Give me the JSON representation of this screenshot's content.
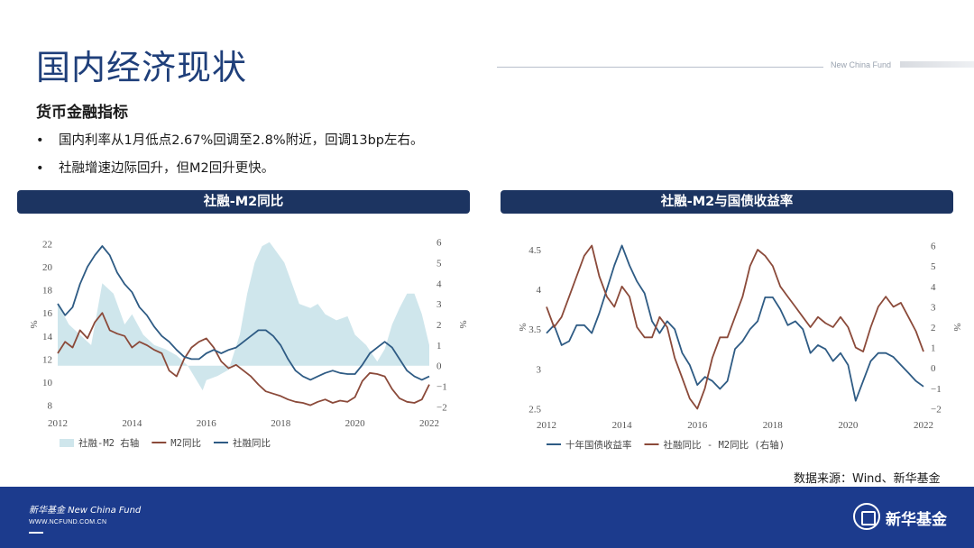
{
  "header": {
    "title": "国内经济现状",
    "brand": "New China Fund"
  },
  "content": {
    "subtitle": "货币金融指标",
    "bullets": [
      "国内利率从1月低点2.67%回调至2.8%附近，回调13bp左右。",
      "社融增速边际回升，但M2回升更快。"
    ]
  },
  "colors": {
    "navy": "#1c3461",
    "line_blue": "#2e5b84",
    "line_brown": "#8b4a3a",
    "area_fill": "#cfe6ec",
    "footer": "#1c3b8d"
  },
  "chart_data": [
    {
      "type": "line",
      "title": "社融-M2同比",
      "x_ticks": [
        "2012",
        "2014",
        "2016",
        "2018",
        "2020",
        "2022"
      ],
      "xlim": [
        2012,
        2022
      ],
      "ylabel": "%",
      "y2label": "%",
      "y_ticks": [
        "8",
        "10",
        "12",
        "14",
        "16",
        "18",
        "20",
        "22"
      ],
      "ylim": [
        7.5,
        22.5
      ],
      "y2_ticks": [
        "−2",
        "−1",
        "0",
        "1",
        "2",
        "3",
        "4",
        "5",
        "6"
      ],
      "y2lim": [
        -2.2,
        6.2
      ],
      "legend": [
        "社融-M2 右轴",
        "M2同比",
        "社融同比"
      ],
      "series": [
        {
          "name": "社融-M2 右轴",
          "axis": "right",
          "kind": "area",
          "x": [
            2012.0,
            2012.3,
            2012.6,
            2012.9,
            2013.2,
            2013.5,
            2013.8,
            2014.0,
            2014.3,
            2014.6,
            2014.9,
            2015.2,
            2015.5,
            2015.7,
            2015.9,
            2016.0,
            2016.3,
            2016.6,
            2016.9,
            2017.1,
            2017.3,
            2017.5,
            2017.7,
            2017.9,
            2018.1,
            2018.3,
            2018.5,
            2018.8,
            2019.0,
            2019.2,
            2019.5,
            2019.8,
            2020.0,
            2020.3,
            2020.6,
            2020.8,
            2021.0,
            2021.2,
            2021.4,
            2021.6,
            2021.8,
            2022.0
          ],
          "values": [
            3.0,
            2.0,
            1.5,
            1.0,
            4.0,
            3.5,
            2.0,
            2.5,
            1.5,
            1.0,
            0.8,
            0.5,
            0.0,
            -0.6,
            -1.2,
            -0.7,
            -0.5,
            -0.2,
            1.5,
            3.5,
            5.0,
            5.8,
            6.0,
            5.5,
            5.0,
            4.0,
            3.0,
            2.8,
            3.0,
            2.5,
            2.2,
            2.4,
            1.5,
            1.0,
            0.2,
            0.8,
            2.0,
            2.8,
            3.5,
            3.5,
            2.5,
            1.0
          ]
        },
        {
          "name": "M2同比",
          "axis": "left",
          "kind": "line",
          "x": [
            2012.0,
            2012.2,
            2012.4,
            2012.6,
            2012.8,
            2013.0,
            2013.2,
            2013.4,
            2013.6,
            2013.8,
            2014.0,
            2014.2,
            2014.4,
            2014.6,
            2014.8,
            2015.0,
            2015.2,
            2015.4,
            2015.6,
            2015.8,
            2016.0,
            2016.2,
            2016.4,
            2016.6,
            2016.8,
            2017.0,
            2017.2,
            2017.4,
            2017.6,
            2017.8,
            2018.0,
            2018.2,
            2018.4,
            2018.6,
            2018.8,
            2019.0,
            2019.2,
            2019.4,
            2019.6,
            2019.8,
            2020.0,
            2020.2,
            2020.4,
            2020.6,
            2020.8,
            2021.0,
            2021.2,
            2021.4,
            2021.6,
            2021.8,
            2022.0
          ],
          "values": [
            12.5,
            13.5,
            13.0,
            14.5,
            13.8,
            15.2,
            16.0,
            14.5,
            14.2,
            14.0,
            13.0,
            13.5,
            13.2,
            12.8,
            12.5,
            11.0,
            10.5,
            12.0,
            13.0,
            13.5,
            13.8,
            13.0,
            11.8,
            11.2,
            11.5,
            11.0,
            10.5,
            9.8,
            9.2,
            9.0,
            8.8,
            8.5,
            8.3,
            8.2,
            8.0,
            8.3,
            8.5,
            8.2,
            8.4,
            8.3,
            8.7,
            10.1,
            10.8,
            10.7,
            10.5,
            9.4,
            8.6,
            8.3,
            8.2,
            8.5,
            9.8
          ]
        },
        {
          "name": "社融同比",
          "axis": "left",
          "kind": "line",
          "x": [
            2012.0,
            2012.2,
            2012.4,
            2012.6,
            2012.8,
            2013.0,
            2013.2,
            2013.4,
            2013.6,
            2013.8,
            2014.0,
            2014.2,
            2014.4,
            2014.6,
            2014.8,
            2015.0,
            2015.2,
            2015.4,
            2015.6,
            2015.8,
            2016.0,
            2016.2,
            2016.4,
            2016.6,
            2016.8,
            2017.0,
            2017.2,
            2017.4,
            2017.6,
            2017.8,
            2018.0,
            2018.2,
            2018.4,
            2018.6,
            2018.8,
            2019.0,
            2019.2,
            2019.4,
            2019.6,
            2019.8,
            2020.0,
            2020.2,
            2020.4,
            2020.6,
            2020.8,
            2021.0,
            2021.2,
            2021.4,
            2021.6,
            2021.8,
            2022.0
          ],
          "values": [
            16.8,
            15.8,
            16.5,
            18.5,
            20.0,
            21.0,
            21.8,
            21.0,
            19.5,
            18.5,
            17.8,
            16.5,
            15.8,
            14.8,
            14.0,
            13.5,
            12.8,
            12.2,
            12.0,
            12.0,
            12.5,
            12.8,
            12.5,
            12.8,
            13.0,
            13.5,
            14.0,
            14.5,
            14.5,
            14.0,
            13.2,
            12.0,
            11.0,
            10.5,
            10.2,
            10.5,
            10.8,
            11.0,
            10.8,
            10.7,
            10.7,
            11.5,
            12.5,
            13.0,
            13.5,
            13.0,
            12.0,
            11.0,
            10.5,
            10.2,
            10.5
          ]
        }
      ]
    },
    {
      "type": "line",
      "title": "社融-M2与国债收益率",
      "x_ticks": [
        "2012",
        "2014",
        "2016",
        "2018",
        "2020",
        "2022"
      ],
      "xlim": [
        2012,
        2022
      ],
      "ylabel": "%",
      "y2label": "%",
      "y_ticks": [
        "2.5",
        "3",
        "3.5",
        "4",
        "4.5"
      ],
      "ylim": [
        2.45,
        4.6
      ],
      "y2_ticks": [
        "−2",
        "−1",
        "0",
        "1",
        "2",
        "3",
        "4",
        "5",
        "6"
      ],
      "y2lim": [
        -2.2,
        6.2
      ],
      "legend": [
        "十年国债收益率",
        "社融同比 - M2同比 (右轴)"
      ],
      "series": [
        {
          "name": "十年国债收益率",
          "axis": "left",
          "x": [
            2012.0,
            2012.2,
            2012.4,
            2012.6,
            2012.8,
            2013.0,
            2013.2,
            2013.4,
            2013.6,
            2013.8,
            2014.0,
            2014.2,
            2014.4,
            2014.6,
            2014.8,
            2015.0,
            2015.2,
            2015.4,
            2015.6,
            2015.8,
            2016.0,
            2016.2,
            2016.4,
            2016.6,
            2016.8,
            2017.0,
            2017.2,
            2017.4,
            2017.6,
            2017.8,
            2018.0,
            2018.2,
            2018.4,
            2018.6,
            2018.8,
            2019.0,
            2019.2,
            2019.4,
            2019.6,
            2019.8,
            2020.0,
            2020.2,
            2020.4,
            2020.6,
            2020.8,
            2021.0,
            2021.2,
            2021.4,
            2021.6,
            2021.8,
            2022.0
          ],
          "values": [
            3.45,
            3.55,
            3.3,
            3.35,
            3.55,
            3.55,
            3.45,
            3.7,
            4.0,
            4.3,
            4.55,
            4.3,
            4.1,
            3.95,
            3.6,
            3.45,
            3.6,
            3.5,
            3.2,
            3.05,
            2.8,
            2.9,
            2.85,
            2.75,
            2.85,
            3.25,
            3.35,
            3.5,
            3.6,
            3.9,
            3.9,
            3.75,
            3.55,
            3.6,
            3.5,
            3.2,
            3.3,
            3.25,
            3.1,
            3.2,
            3.05,
            2.6,
            2.85,
            3.1,
            3.2,
            3.2,
            3.15,
            3.05,
            2.95,
            2.85,
            2.78
          ]
        },
        {
          "name": "社融同比 - M2同比 (右轴)",
          "axis": "right",
          "x": [
            2012.0,
            2012.2,
            2012.4,
            2012.6,
            2012.8,
            2013.0,
            2013.2,
            2013.4,
            2013.6,
            2013.8,
            2014.0,
            2014.2,
            2014.4,
            2014.6,
            2014.8,
            2015.0,
            2015.2,
            2015.4,
            2015.6,
            2015.8,
            2016.0,
            2016.2,
            2016.4,
            2016.6,
            2016.8,
            2017.0,
            2017.2,
            2017.4,
            2017.6,
            2017.8,
            2018.0,
            2018.2,
            2018.4,
            2018.6,
            2018.8,
            2019.0,
            2019.2,
            2019.4,
            2019.6,
            2019.8,
            2020.0,
            2020.2,
            2020.4,
            2020.6,
            2020.8,
            2021.0,
            2021.2,
            2021.4,
            2021.6,
            2021.8,
            2022.0
          ],
          "values": [
            3.0,
            2.0,
            2.5,
            3.5,
            4.5,
            5.5,
            6.0,
            4.5,
            3.5,
            3.0,
            4.0,
            3.5,
            2.0,
            1.5,
            1.5,
            2.5,
            2.0,
            0.5,
            -0.5,
            -1.5,
            -2.0,
            -1.0,
            0.5,
            1.5,
            1.5,
            2.5,
            3.5,
            5.0,
            5.8,
            5.5,
            5.0,
            4.0,
            3.5,
            3.0,
            2.5,
            2.0,
            2.5,
            2.2,
            2.0,
            2.5,
            2.0,
            1.0,
            0.8,
            2.0,
            3.0,
            3.5,
            3.0,
            3.2,
            2.5,
            1.8,
            0.8
          ]
        }
      ]
    }
  ],
  "footer": {
    "source": "数据来源：Wind、新华基金",
    "brand_left": "新华基金 New China Fund",
    "url": "WWW.NCFUND.COM.CN",
    "brand_right": "新华基金"
  }
}
